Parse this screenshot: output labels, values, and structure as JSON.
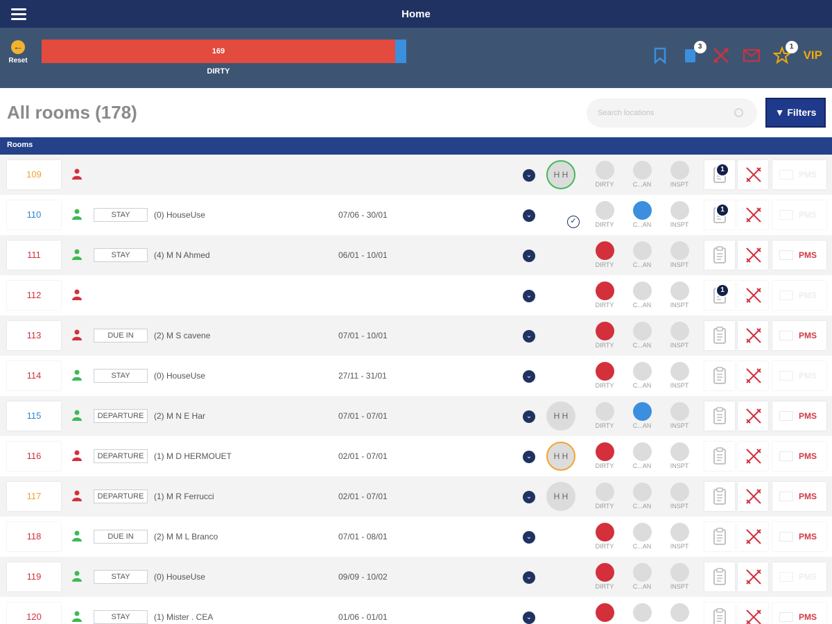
{
  "header": {
    "title": "Home"
  },
  "status_bar": {
    "reset_label": "Reset",
    "count": "169",
    "label": "DIRTY",
    "dirty_fraction": 0.97,
    "colors": {
      "dirty": "#e34b3e",
      "other": "#3b8fde"
    },
    "icons": [
      {
        "name": "bookmark-icon",
        "badge": ""
      },
      {
        "name": "document-icon",
        "badge": "3"
      },
      {
        "name": "tools-icon",
        "badge": ""
      },
      {
        "name": "mail-icon",
        "badge": ""
      },
      {
        "name": "star-icon",
        "badge": "1"
      }
    ],
    "vip_label": "VIP"
  },
  "page": {
    "title": "All rooms (178)",
    "search_placeholder": "Search locations",
    "filters_label": "Filters",
    "section_label": "Rooms"
  },
  "status_labels": {
    "dirty": "DIRTY",
    "clean": "C...AN",
    "inspected": "INSPT"
  },
  "rooms": [
    {
      "number": "109",
      "number_color": "#f0a030",
      "person_color": "#d3303c",
      "tag": "",
      "guest": "",
      "dates": "",
      "hh": "H H",
      "hh_style": "green",
      "check": false,
      "dirty": "grey",
      "clean": "grey",
      "inspt": "grey",
      "clip_badge": "1",
      "pms": "PMS",
      "pms_active": false
    },
    {
      "number": "110",
      "number_color": "#2f86d4",
      "person_color": "#3dba55",
      "tag": "STAY",
      "guest": "(0) HouseUse",
      "dates": "07/06 - 30/01",
      "hh": "",
      "hh_style": "",
      "check": true,
      "dirty": "grey",
      "clean": "blue",
      "inspt": "grey",
      "clip_badge": "1",
      "pms": "PMS",
      "pms_active": false
    },
    {
      "number": "111",
      "number_color": "#d3303c",
      "person_color": "#3dba55",
      "tag": "STAY",
      "guest": "(4) M N Ahmed",
      "dates": "06/01 - 10/01",
      "hh": "",
      "hh_style": "",
      "check": false,
      "dirty": "red",
      "clean": "grey",
      "inspt": "grey",
      "clip_badge": "",
      "pms": "PMS",
      "pms_active": true
    },
    {
      "number": "112",
      "number_color": "#d3303c",
      "person_color": "#d3303c",
      "tag": "",
      "guest": "",
      "dates": "",
      "hh": "",
      "hh_style": "",
      "check": false,
      "dirty": "red",
      "clean": "grey",
      "inspt": "grey",
      "clip_badge": "1",
      "pms": "PMS",
      "pms_active": false
    },
    {
      "number": "113",
      "number_color": "#d3303c",
      "person_color": "#d3303c",
      "tag": "DUE IN",
      "guest": "(2) M S cavene",
      "dates": "07/01 - 10/01",
      "hh": "",
      "hh_style": "",
      "check": false,
      "dirty": "red",
      "clean": "grey",
      "inspt": "grey",
      "clip_badge": "",
      "pms": "PMS",
      "pms_active": true
    },
    {
      "number": "114",
      "number_color": "#d3303c",
      "person_color": "#3dba55",
      "tag": "STAY",
      "guest": "(0) HouseUse",
      "dates": "27/11 - 31/01",
      "hh": "",
      "hh_style": "",
      "check": false,
      "dirty": "red",
      "clean": "grey",
      "inspt": "grey",
      "clip_badge": "",
      "pms": "PMS",
      "pms_active": false
    },
    {
      "number": "115",
      "number_color": "#2f86d4",
      "person_color": "#3dba55",
      "tag": "DEPARTURE",
      "guest": "(2) M N E Har",
      "dates": "07/01 - 07/01",
      "hh": "H H",
      "hh_style": "",
      "check": false,
      "dirty": "grey",
      "clean": "blue",
      "inspt": "grey",
      "clip_badge": "",
      "pms": "PMS",
      "pms_active": true
    },
    {
      "number": "116",
      "number_color": "#d3303c",
      "person_color": "#d3303c",
      "tag": "DEPARTURE",
      "guest": "(1) M D HERMOUET",
      "dates": "02/01 - 07/01",
      "hh": "H H",
      "hh_style": "orange",
      "check": false,
      "dirty": "red",
      "clean": "grey",
      "inspt": "grey",
      "clip_badge": "",
      "pms": "PMS",
      "pms_active": true
    },
    {
      "number": "117",
      "number_color": "#f0a030",
      "person_color": "#d3303c",
      "tag": "DEPARTURE",
      "guest": "(1) M R Ferrucci",
      "dates": "02/01 - 07/01",
      "hh": "H H",
      "hh_style": "",
      "check": false,
      "dirty": "grey",
      "clean": "grey",
      "inspt": "grey",
      "clip_badge": "",
      "pms": "PMS",
      "pms_active": true
    },
    {
      "number": "118",
      "number_color": "#d3303c",
      "person_color": "#3dba55",
      "tag": "DUE IN",
      "guest": "(2) M M L Branco",
      "dates": "07/01 - 08/01",
      "hh": "",
      "hh_style": "",
      "check": false,
      "dirty": "red",
      "clean": "grey",
      "inspt": "grey",
      "clip_badge": "",
      "pms": "PMS",
      "pms_active": true
    },
    {
      "number": "119",
      "number_color": "#d3303c",
      "person_color": "#3dba55",
      "tag": "STAY",
      "guest": "(0) HouseUse",
      "dates": "09/09 - 10/02",
      "hh": "",
      "hh_style": "",
      "check": false,
      "dirty": "red",
      "clean": "grey",
      "inspt": "grey",
      "clip_badge": "",
      "pms": "PMS",
      "pms_active": false
    },
    {
      "number": "120",
      "number_color": "#d3303c",
      "person_color": "#3dba55",
      "tag": "STAY",
      "guest": "(1) Mister . CEA",
      "dates": "01/06 - 01/01",
      "hh": "",
      "hh_style": "",
      "check": false,
      "dirty": "red",
      "clean": "grey",
      "inspt": "grey",
      "clip_badge": "",
      "pms": "PMS",
      "pms_active": true
    }
  ]
}
